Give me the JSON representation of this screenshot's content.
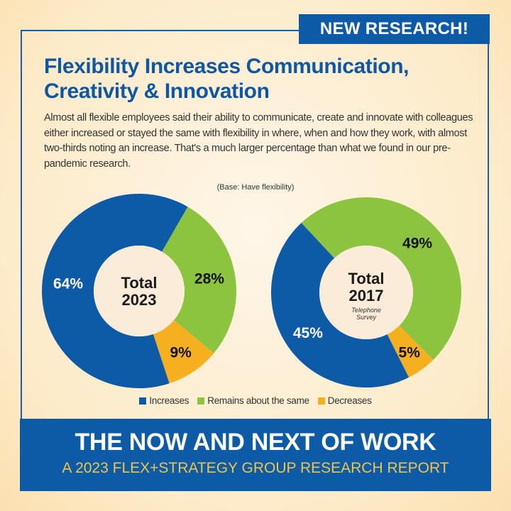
{
  "badge": "NEW RESEARCH!",
  "title_line1": "Flexibility Increases Communication,",
  "title_line2": "Creativity & Innovation",
  "body": "Almost all flexible employees said their ability to communicate, create and innovate with colleagues either increased or stayed the same with flexibility in where, when and how they work, with almost two-thirds noting an increase. That's a much larger percentage than what we found in our pre-pandemic research.",
  "base_note": "(Base: Have flexibility)",
  "colors": {
    "Increases": "#0d5aa7",
    "Remains about the same": "#8cc43f",
    "Decreases": "#f6b01f",
    "center": "#fbecd9"
  },
  "chart_data": [
    {
      "type": "pie",
      "variant": "donut",
      "center_label": [
        "Total",
        "2023"
      ],
      "center_sublabel": "",
      "categories": [
        "Increases",
        "Remains about the same",
        "Decreases"
      ],
      "values": [
        64,
        28,
        9
      ],
      "data_labels": [
        "64%",
        "28%",
        "9%"
      ]
    },
    {
      "type": "pie",
      "variant": "donut",
      "center_label": [
        "Total",
        "2017"
      ],
      "center_sublabel": [
        "Telephone",
        "Survey"
      ],
      "categories": [
        "Increases",
        "Remains about the same",
        "Decreases"
      ],
      "values": [
        45,
        49,
        5
      ],
      "data_labels": [
        "45%",
        "49%",
        "5%"
      ]
    }
  ],
  "legend": [
    "Increases",
    "Remains about the same",
    "Decreases"
  ],
  "footer": {
    "title": "THE NOW AND NEXT OF WORK",
    "subtitle": "A 2023 FLEX+STRATEGY GROUP RESEARCH REPORT"
  }
}
